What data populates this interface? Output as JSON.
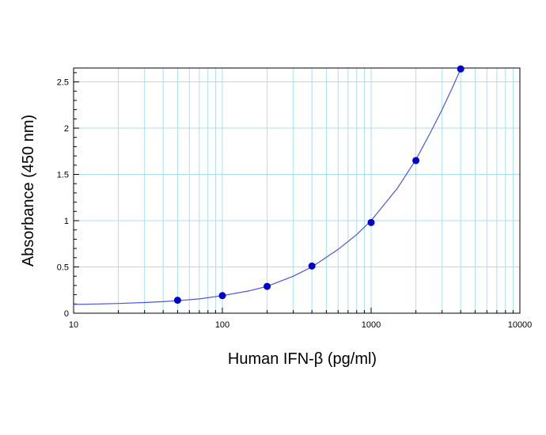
{
  "chart_data": {
    "type": "scatter",
    "xlabel": "Human IFN-β (pg/ml)",
    "ylabel": "Absorbance (450 nm)",
    "x_scale": "log",
    "xlim": [
      10,
      10000
    ],
    "ylim": [
      0,
      2.65
    ],
    "x_ticks": [
      "10",
      "100",
      "1000",
      "10000"
    ],
    "y_ticks": [
      "0",
      "0.5",
      "1",
      "1.5",
      "2",
      "2.5"
    ],
    "grid": true,
    "series": [
      {
        "points": [
          {
            "x": 50,
            "y": 0.14
          },
          {
            "x": 100,
            "y": 0.19
          },
          {
            "x": 200,
            "y": 0.29
          },
          {
            "x": 400,
            "y": 0.51
          },
          {
            "x": 1000,
            "y": 0.98
          },
          {
            "x": 2000,
            "y": 1.65
          },
          {
            "x": 4000,
            "y": 2.64
          }
        ]
      }
    ],
    "fit_curve": {
      "x": [
        10,
        15,
        20,
        30,
        40,
        50,
        70,
        100,
        150,
        200,
        300,
        400,
        600,
        800,
        1000,
        1500,
        2000,
        2500,
        3000,
        3500,
        4000
      ],
      "y": [
        0.095,
        0.1,
        0.105,
        0.115,
        0.125,
        0.135,
        0.155,
        0.19,
        0.24,
        0.29,
        0.4,
        0.5,
        0.69,
        0.85,
        1.0,
        1.35,
        1.66,
        1.95,
        2.2,
        2.43,
        2.64
      ]
    },
    "colors": {
      "marker": "#0000cc",
      "curve": "#4a55e6",
      "grid": "#a8dff5",
      "frame": "#000000"
    }
  }
}
